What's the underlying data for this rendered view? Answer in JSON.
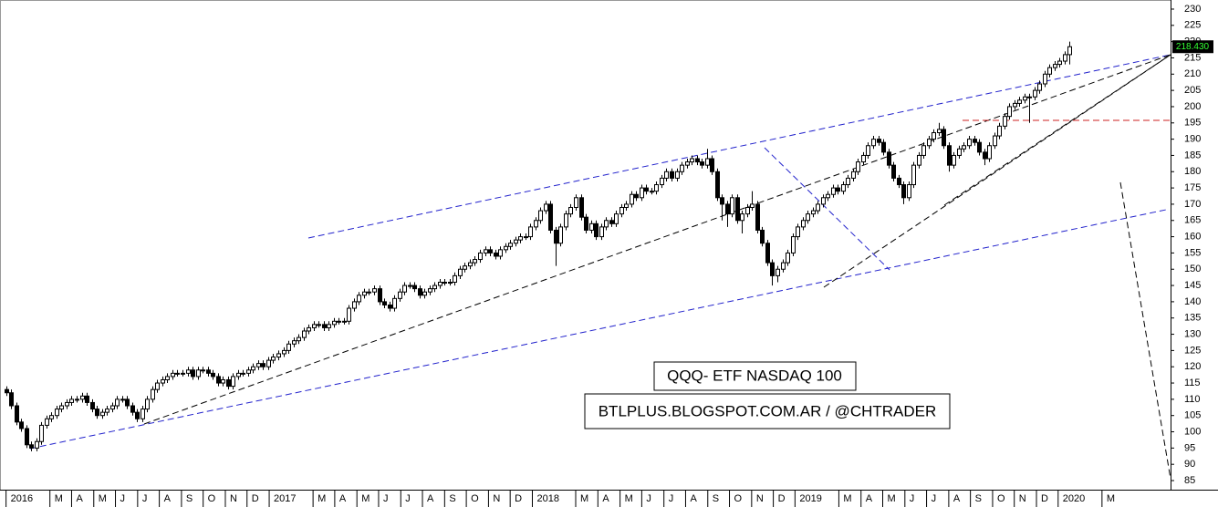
{
  "chart_data": {
    "type": "candlestick",
    "ylim": [
      82.2,
      232.8
    ],
    "yticks": [
      85,
      90,
      95,
      100,
      105,
      110,
      115,
      120,
      125,
      130,
      135,
      140,
      145,
      150,
      155,
      160,
      165,
      170,
      175,
      180,
      185,
      190,
      195,
      200,
      205,
      210,
      215,
      220,
      225,
      230
    ],
    "xlim": [
      -1.2,
      231
    ],
    "xticks": [
      {
        "value": 0,
        "label": "2016"
      },
      {
        "value": 8.7,
        "label": "M"
      },
      {
        "value": 13,
        "label": "A"
      },
      {
        "value": 17.4,
        "label": "M"
      },
      {
        "value": 21.7,
        "label": "J"
      },
      {
        "value": 26.1,
        "label": "J"
      },
      {
        "value": 30.4,
        "label": "A"
      },
      {
        "value": 34.8,
        "label": "S"
      },
      {
        "value": 39.1,
        "label": "O"
      },
      {
        "value": 43.5,
        "label": "N"
      },
      {
        "value": 47.8,
        "label": "D"
      },
      {
        "value": 52.2,
        "label": "2017"
      },
      {
        "value": 60.9,
        "label": "M"
      },
      {
        "value": 65.2,
        "label": "A"
      },
      {
        "value": 69.6,
        "label": "M"
      },
      {
        "value": 73.9,
        "label": "J"
      },
      {
        "value": 78.3,
        "label": "J"
      },
      {
        "value": 82.6,
        "label": "A"
      },
      {
        "value": 87,
        "label": "S"
      },
      {
        "value": 91.3,
        "label": "O"
      },
      {
        "value": 95.7,
        "label": "N"
      },
      {
        "value": 100,
        "label": "D"
      },
      {
        "value": 104.4,
        "label": "2018"
      },
      {
        "value": 113,
        "label": "M"
      },
      {
        "value": 117.4,
        "label": "A"
      },
      {
        "value": 121.8,
        "label": "M"
      },
      {
        "value": 126.1,
        "label": "J"
      },
      {
        "value": 130.5,
        "label": "J"
      },
      {
        "value": 134.8,
        "label": "A"
      },
      {
        "value": 139.2,
        "label": "S"
      },
      {
        "value": 143.5,
        "label": "O"
      },
      {
        "value": 147.9,
        "label": "N"
      },
      {
        "value": 152.2,
        "label": "D"
      },
      {
        "value": 156.5,
        "label": "2019"
      },
      {
        "value": 165.2,
        "label": "M"
      },
      {
        "value": 169.6,
        "label": "A"
      },
      {
        "value": 173.9,
        "label": "M"
      },
      {
        "value": 178.3,
        "label": "J"
      },
      {
        "value": 182.6,
        "label": "J"
      },
      {
        "value": 187,
        "label": "A"
      },
      {
        "value": 191.3,
        "label": "S"
      },
      {
        "value": 195.7,
        "label": "O"
      },
      {
        "value": 200,
        "label": "N"
      },
      {
        "value": 204.4,
        "label": "D"
      },
      {
        "value": 208.7,
        "label": "2020"
      },
      {
        "value": 217.4,
        "label": "M"
      }
    ],
    "annotations": [
      "QQQ- ETF NASDAQ 100",
      "BTLPLUS.BLOGSPOT.COM.AR / @CHTRADER"
    ],
    "last_price": {
      "value": 218.43,
      "label": "218.430"
    },
    "up_color": "#ffffff",
    "down_color": "#000000",
    "candles": [
      [
        113,
        114,
        111,
        112
      ],
      [
        112,
        113,
        107,
        108
      ],
      [
        108,
        109,
        102,
        103
      ],
      [
        103,
        104,
        100,
        101
      ],
      [
        101,
        102,
        95,
        96
      ],
      [
        96,
        97,
        94,
        95
      ],
      [
        95,
        98,
        94,
        97
      ],
      [
        97,
        103,
        96,
        102
      ],
      [
        102,
        105,
        101,
        104
      ],
      [
        104,
        106,
        103,
        105
      ],
      [
        105,
        108,
        104,
        107
      ],
      [
        107,
        109,
        106,
        108
      ],
      [
        108,
        110,
        107,
        109
      ],
      [
        109,
        111,
        108,
        110
      ],
      [
        110,
        111,
        109,
        110
      ],
      [
        110,
        112,
        109,
        111
      ],
      [
        111,
        112,
        108,
        109
      ],
      [
        109,
        110,
        106,
        107
      ],
      [
        107,
        108,
        104,
        105
      ],
      [
        105,
        107,
        104,
        106
      ],
      [
        106,
        108,
        105,
        107
      ],
      [
        107,
        109,
        106,
        108
      ],
      [
        108,
        111,
        107,
        110
      ],
      [
        110,
        111,
        109,
        110
      ],
      [
        110,
        111,
        107,
        108
      ],
      [
        108,
        109,
        105,
        106
      ],
      [
        106,
        107,
        103,
        104
      ],
      [
        104,
        108,
        103,
        107
      ],
      [
        107,
        111,
        106,
        110
      ],
      [
        110,
        114,
        109,
        113
      ],
      [
        113,
        116,
        112,
        115
      ],
      [
        115,
        117,
        114,
        116
      ],
      [
        116,
        118,
        115,
        117
      ],
      [
        117,
        119,
        116,
        118
      ],
      [
        118,
        119,
        117,
        118
      ],
      [
        118,
        119,
        117,
        118
      ],
      [
        118,
        120,
        117,
        119
      ],
      [
        119,
        120,
        116,
        117
      ],
      [
        117,
        120,
        116,
        119
      ],
      [
        119,
        120,
        118,
        119
      ],
      [
        119,
        120,
        117,
        118
      ],
      [
        118,
        119,
        116,
        117
      ],
      [
        117,
        118,
        114,
        115
      ],
      [
        115,
        117,
        114,
        116
      ],
      [
        116,
        117,
        113,
        114
      ],
      [
        114,
        118,
        113,
        117
      ],
      [
        117,
        119,
        116,
        118
      ],
      [
        118,
        119,
        117,
        118
      ],
      [
        118,
        120,
        117,
        119
      ],
      [
        119,
        121,
        118,
        120
      ],
      [
        120,
        122,
        119,
        121
      ],
      [
        121,
        122,
        119,
        120
      ],
      [
        120,
        123,
        119,
        122
      ],
      [
        122,
        124,
        121,
        123
      ],
      [
        123,
        125,
        122,
        124
      ],
      [
        124,
        126,
        123,
        125
      ],
      [
        125,
        128,
        124,
        127
      ],
      [
        127,
        129,
        126,
        128
      ],
      [
        128,
        130,
        127,
        129
      ],
      [
        129,
        132,
        128,
        131
      ],
      [
        131,
        133,
        130,
        132
      ],
      [
        132,
        134,
        131,
        133
      ],
      [
        133,
        134,
        132,
        133
      ],
      [
        133,
        134,
        131,
        132
      ],
      [
        132,
        134,
        131,
        133
      ],
      [
        133,
        135,
        132,
        134
      ],
      [
        134,
        135,
        133,
        134
      ],
      [
        134,
        135,
        133,
        134
      ],
      [
        134,
        139,
        133,
        138
      ],
      [
        138,
        141,
        137,
        140
      ],
      [
        140,
        143,
        139,
        142
      ],
      [
        142,
        144,
        141,
        143
      ],
      [
        143,
        144,
        142,
        143
      ],
      [
        143,
        145,
        142,
        144
      ],
      [
        144,
        145,
        139,
        140
      ],
      [
        140,
        141,
        138,
        139
      ],
      [
        139,
        140,
        137,
        138
      ],
      [
        138,
        142,
        137,
        141
      ],
      [
        141,
        144,
        140,
        143
      ],
      [
        143,
        146,
        142,
        145
      ],
      [
        145,
        146,
        144,
        145
      ],
      [
        145,
        146,
        143,
        144
      ],
      [
        144,
        145,
        141,
        142
      ],
      [
        142,
        144,
        141,
        143
      ],
      [
        143,
        145,
        142,
        144
      ],
      [
        144,
        146,
        143,
        145
      ],
      [
        145,
        147,
        144,
        146
      ],
      [
        146,
        147,
        145,
        146
      ],
      [
        146,
        147,
        145,
        146
      ],
      [
        146,
        149,
        145,
        148
      ],
      [
        148,
        151,
        147,
        150
      ],
      [
        150,
        152,
        149,
        151
      ],
      [
        151,
        153,
        150,
        152
      ],
      [
        152,
        154,
        151,
        153
      ],
      [
        153,
        156,
        152,
        155
      ],
      [
        155,
        157,
        154,
        156
      ],
      [
        156,
        157,
        154,
        155
      ],
      [
        155,
        156,
        153,
        154
      ],
      [
        154,
        157,
        153,
        156
      ],
      [
        156,
        158,
        155,
        157
      ],
      [
        157,
        159,
        156,
        158
      ],
      [
        158,
        160,
        157,
        159
      ],
      [
        159,
        161,
        158,
        160
      ],
      [
        160,
        161,
        159,
        160
      ],
      [
        160,
        164,
        159,
        163
      ],
      [
        163,
        166,
        162,
        165
      ],
      [
        165,
        169,
        164,
        168
      ],
      [
        168,
        171,
        167,
        170
      ],
      [
        170,
        171,
        161,
        162
      ],
      [
        162,
        163,
        151,
        158
      ],
      [
        158,
        164,
        157,
        163
      ],
      [
        163,
        168,
        162,
        167
      ],
      [
        167,
        170,
        166,
        169
      ],
      [
        169,
        173,
        168,
        172
      ],
      [
        172,
        173,
        165,
        166
      ],
      [
        166,
        167,
        161,
        162
      ],
      [
        162,
        165,
        161,
        164
      ],
      [
        164,
        165,
        159,
        160
      ],
      [
        160,
        164,
        159,
        163
      ],
      [
        163,
        166,
        162,
        165
      ],
      [
        165,
        166,
        163,
        164
      ],
      [
        164,
        168,
        163,
        167
      ],
      [
        167,
        170,
        166,
        169
      ],
      [
        169,
        171,
        168,
        170
      ],
      [
        170,
        174,
        169,
        173
      ],
      [
        173,
        174,
        171,
        172
      ],
      [
        172,
        176,
        171,
        175
      ],
      [
        175,
        176,
        173,
        174
      ],
      [
        174,
        175,
        173,
        174
      ],
      [
        174,
        177,
        173,
        176
      ],
      [
        176,
        179,
        175,
        178
      ],
      [
        178,
        181,
        177,
        180
      ],
      [
        180,
        181,
        177,
        178
      ],
      [
        178,
        181,
        177,
        180
      ],
      [
        180,
        183,
        179,
        182
      ],
      [
        182,
        184,
        181,
        183
      ],
      [
        183,
        185,
        182,
        184
      ],
      [
        184,
        185,
        182,
        183
      ],
      [
        183,
        184,
        181,
        182
      ],
      [
        182,
        187,
        181,
        184
      ],
      [
        184,
        185,
        179,
        180
      ],
      [
        180,
        181,
        171,
        172
      ],
      [
        172,
        173,
        165,
        170
      ],
      [
        170,
        171,
        163,
        167
      ],
      [
        167,
        173,
        166,
        172
      ],
      [
        172,
        173,
        164,
        165
      ],
      [
        165,
        168,
        161,
        167
      ],
      [
        167,
        170,
        166,
        169
      ],
      [
        169,
        174,
        168,
        170
      ],
      [
        170,
        171,
        161,
        162
      ],
      [
        162,
        163,
        157,
        158
      ],
      [
        158,
        159,
        151,
        152
      ],
      [
        152,
        153,
        145,
        148
      ],
      [
        148,
        151,
        146,
        150
      ],
      [
        150,
        153,
        149,
        152
      ],
      [
        152,
        156,
        151,
        155
      ],
      [
        155,
        161,
        154,
        160
      ],
      [
        160,
        164,
        159,
        163
      ],
      [
        163,
        166,
        162,
        165
      ],
      [
        165,
        168,
        164,
        167
      ],
      [
        167,
        169,
        166,
        168
      ],
      [
        168,
        171,
        167,
        170
      ],
      [
        170,
        173,
        169,
        172
      ],
      [
        172,
        174,
        171,
        173
      ],
      [
        173,
        176,
        172,
        175
      ],
      [
        175,
        176,
        173,
        174
      ],
      [
        174,
        177,
        173,
        176
      ],
      [
        176,
        179,
        175,
        178
      ],
      [
        178,
        181,
        177,
        180
      ],
      [
        180,
        184,
        179,
        183
      ],
      [
        183,
        186,
        182,
        185
      ],
      [
        185,
        189,
        184,
        188
      ],
      [
        188,
        191,
        187,
        190
      ],
      [
        190,
        191,
        188,
        189
      ],
      [
        189,
        190,
        185,
        186
      ],
      [
        186,
        187,
        181,
        182
      ],
      [
        182,
        183,
        177,
        178
      ],
      [
        178,
        179,
        175,
        176
      ],
      [
        176,
        177,
        170,
        172
      ],
      [
        172,
        177,
        171,
        176
      ],
      [
        176,
        183,
        175,
        182
      ],
      [
        182,
        186,
        181,
        185
      ],
      [
        185,
        189,
        184,
        188
      ],
      [
        188,
        191,
        187,
        190
      ],
      [
        190,
        193,
        189,
        192
      ],
      [
        192,
        195,
        191,
        193
      ],
      [
        193,
        194,
        187,
        188
      ],
      [
        188,
        189,
        180,
        182
      ],
      [
        182,
        186,
        181,
        185
      ],
      [
        185,
        188,
        184,
        187
      ],
      [
        187,
        189,
        186,
        188
      ],
      [
        188,
        191,
        187,
        190
      ],
      [
        190,
        191,
        188,
        189
      ],
      [
        189,
        190,
        185,
        186
      ],
      [
        186,
        187,
        182,
        184
      ],
      [
        184,
        189,
        183,
        188
      ],
      [
        188,
        192,
        187,
        191
      ],
      [
        191,
        195,
        190,
        194
      ],
      [
        194,
        198,
        193,
        197
      ],
      [
        197,
        201,
        196,
        200
      ],
      [
        200,
        202,
        199,
        201
      ],
      [
        201,
        203,
        200,
        202
      ],
      [
        202,
        204,
        201,
        203
      ],
      [
        203,
        204,
        195,
        203
      ],
      [
        203,
        206,
        202,
        205
      ],
      [
        205,
        208,
        204,
        207
      ],
      [
        207,
        211,
        206,
        210
      ],
      [
        210,
        213,
        209,
        212
      ],
      [
        212,
        214,
        211,
        213
      ],
      [
        213,
        215,
        212,
        214
      ],
      [
        214,
        217,
        213,
        216
      ],
      [
        216,
        220,
        213,
        218.43
      ]
    ]
  }
}
